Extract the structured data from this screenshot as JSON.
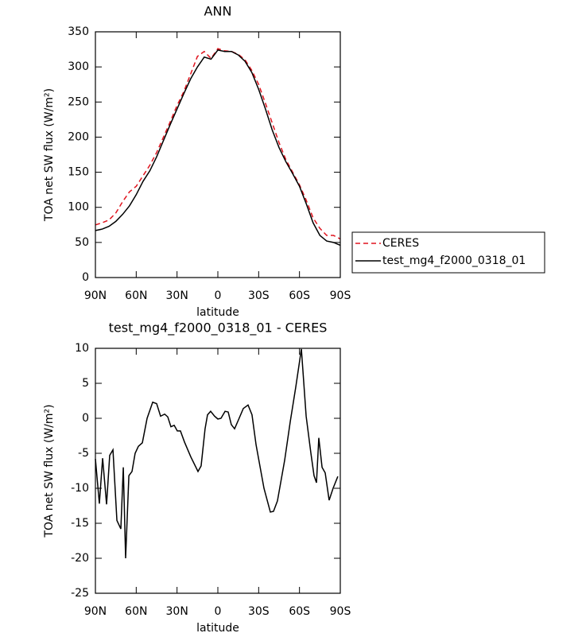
{
  "chart_data": [
    {
      "type": "line",
      "title": "ANN",
      "x_label": "latitude",
      "y_label": "TOA net SW flux (W/m²)",
      "x": [
        90,
        85,
        80,
        75,
        70,
        65,
        60,
        55,
        50,
        45,
        40,
        35,
        30,
        25,
        20,
        15,
        10,
        5,
        0,
        -5,
        -10,
        -15,
        -20,
        -25,
        -30,
        -35,
        -40,
        -45,
        -50,
        -55,
        -60,
        -65,
        -70,
        -75,
        -80,
        -85,
        -90
      ],
      "series": [
        {
          "name": "CERES",
          "color": "#e0141e",
          "dash": true,
          "values": [
            75,
            78,
            82,
            92,
            108,
            122,
            130,
            145,
            160,
            178,
            200,
            222,
            245,
            265,
            290,
            315,
            322,
            312,
            326,
            323,
            322,
            318,
            310,
            295,
            275,
            248,
            220,
            192,
            168,
            150,
            132,
            110,
            85,
            70,
            60,
            60,
            55
          ]
        },
        {
          "name": "test_mg4_f2000_0318_01",
          "color": "#000000",
          "dash": false,
          "values": [
            67,
            69,
            73,
            80,
            90,
            102,
            118,
            137,
            152,
            172,
            195,
            218,
            240,
            262,
            283,
            300,
            314,
            311,
            324,
            322,
            322,
            317,
            308,
            292,
            268,
            240,
            210,
            185,
            165,
            148,
            130,
            105,
            78,
            60,
            52,
            50,
            46
          ]
        }
      ],
      "xlim": [
        90,
        -90
      ],
      "xticks": [
        {
          "value": 90,
          "label": "90N"
        },
        {
          "value": 60,
          "label": "60N"
        },
        {
          "value": 30,
          "label": "30N"
        },
        0,
        {
          "value": -30,
          "label": "30S"
        },
        {
          "value": -60,
          "label": "60S"
        },
        {
          "value": -90,
          "label": "90S"
        }
      ],
      "ylim": [
        0,
        350
      ],
      "yticks": [
        0,
        50,
        100,
        150,
        200,
        250,
        300,
        350
      ],
      "legend": "outside-right"
    },
    {
      "type": "line",
      "title": "test_mg4_f2000_0318_01 - CERES",
      "x_label": "latitude",
      "y_label": "TOA net SW flux (W/m²)",
      "x": [
        90,
        87.1,
        84.7,
        81.8,
        79.5,
        77.1,
        74.2,
        71.3,
        69.5,
        67.8,
        65.4,
        63.1,
        60.8,
        58.4,
        55.5,
        52,
        47.9,
        45,
        42.1,
        39.1,
        36.8,
        34.5,
        32.1,
        29.8,
        27.5,
        24.5,
        19.9,
        14.6,
        12.3,
        9.4,
        7.6,
        5.3,
        2.4,
        0,
        -2.3,
        -5.3,
        -7.6,
        -9.9,
        -12.3,
        -15.2,
        -18.7,
        -22.2,
        -25.1,
        -28.1,
        -33.9,
        -38.6,
        -40.9,
        -43.8,
        -49.1,
        -53.2,
        -57.3,
        -61.4,
        -64.9,
        -68.4,
        -70.7,
        -72.5,
        -74.2,
        -76.6,
        -78.9,
        -81.8,
        -84.7,
        -88.2
      ],
      "series": [
        {
          "name": "difference",
          "color": "#000000",
          "dash": false,
          "values": [
            -5.8,
            -12.2,
            -5.7,
            -12.3,
            -5.3,
            -4.5,
            -14.6,
            -15.8,
            -7,
            -20,
            -8.2,
            -7.6,
            -5,
            -4,
            -3.5,
            0,
            2.3,
            2.1,
            0.3,
            0.6,
            0.2,
            -1.2,
            -1.0,
            -1.8,
            -1.8,
            -3.4,
            -5.5,
            -7.6,
            -6.8,
            -1.5,
            0.5,
            1.0,
            0.3,
            -0.1,
            0,
            1.0,
            0.9,
            -0.9,
            -1.5,
            -0.2,
            1.4,
            1.9,
            0.5,
            -3.8,
            -10,
            -13.4,
            -13.3,
            -11.8,
            -6,
            -0.5,
            4.5,
            9.9,
            0.3,
            -5,
            -8.2,
            -9.2,
            -2.8,
            -7,
            -7.8,
            -11.7,
            -10,
            -8.3
          ]
        }
      ],
      "xlim": [
        90,
        -90
      ],
      "xticks": [
        {
          "value": 90,
          "label": "90N"
        },
        {
          "value": 60,
          "label": "60N"
        },
        {
          "value": 30,
          "label": "30N"
        },
        0,
        {
          "value": -30,
          "label": "30S"
        },
        {
          "value": -60,
          "label": "60S"
        },
        {
          "value": -90,
          "label": "90S"
        }
      ],
      "ylim": [
        -25,
        10
      ],
      "yticks": [
        -25,
        -20,
        -15,
        -10,
        -5,
        0,
        5,
        10
      ]
    }
  ]
}
